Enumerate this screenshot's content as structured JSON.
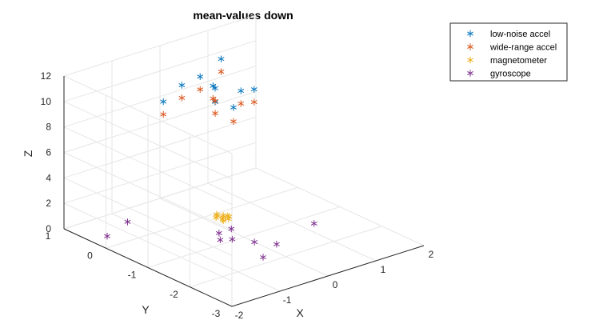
{
  "chart_data": {
    "type": "scatter",
    "title": "mean-values down",
    "xlabel": "X",
    "ylabel": "Y",
    "zlabel": "Z",
    "xlim": [
      -2,
      2
    ],
    "ylim": [
      -3,
      1
    ],
    "zlim": [
      0,
      12
    ],
    "xticks": [
      "-2",
      "-1",
      "0",
      "1",
      "2"
    ],
    "yticks": [
      "-3",
      "-2",
      "-1",
      "0",
      "1"
    ],
    "zticks": [
      "0",
      "2",
      "4",
      "6",
      "8",
      "10",
      "12"
    ],
    "grid": true,
    "legend_position": "top-right (outside)",
    "series": [
      {
        "name": "low-noise accel",
        "color": "#0072BD",
        "marker": "asterisk",
        "points": [
          [
            -1.05,
            -0.28,
            10.8
          ],
          [
            -0.55,
            -0.15,
            11.3
          ],
          [
            -0.38,
            -0.75,
            10.7
          ],
          [
            -0.32,
            -0.68,
            11.6
          ],
          [
            -0.3,
            -0.3,
            11.9
          ],
          [
            -0.25,
            -0.55,
            11.5
          ],
          [
            -0.2,
            -0.98,
            10.4
          ],
          [
            0.2,
            -0.7,
            10.8
          ],
          [
            0.4,
            0.0,
            12.0
          ],
          [
            0.3,
            -0.9,
            11.1
          ]
        ]
      },
      {
        "name": "wide-range accel",
        "color": "#D95319",
        "marker": "asterisk",
        "points": [
          [
            -1.05,
            -0.28,
            9.8
          ],
          [
            -0.55,
            -0.15,
            10.3
          ],
          [
            -0.38,
            -0.75,
            9.8
          ],
          [
            -0.32,
            -0.68,
            10.6
          ],
          [
            -0.3,
            -0.3,
            10.9
          ],
          [
            -0.25,
            -0.55,
            10.5
          ],
          [
            -0.2,
            -0.98,
            9.3
          ],
          [
            0.2,
            -0.7,
            9.8
          ],
          [
            0.4,
            0.0,
            11.0
          ],
          [
            0.3,
            -0.9,
            10.1
          ]
        ]
      },
      {
        "name": "magnetometer",
        "color": "#EDB120",
        "marker": "asterisk",
        "points": [
          [
            0.0,
            -0.5,
            0.8
          ],
          [
            0.05,
            -0.45,
            0.82
          ],
          [
            -0.05,
            -0.55,
            0.78
          ],
          [
            0.1,
            -0.5,
            0.8
          ],
          [
            -0.1,
            -0.45,
            0.81
          ],
          [
            0.03,
            -0.6,
            0.79
          ],
          [
            -0.03,
            -0.4,
            0.8
          ],
          [
            0.08,
            -0.55,
            0.82
          ],
          [
            -0.08,
            -0.6,
            0.78
          ],
          [
            0.0,
            -0.35,
            0.8
          ]
        ]
      },
      {
        "name": "gyroscope",
        "color": "#7E2F8E",
        "marker": "asterisk",
        "points": [
          [
            -1.8,
            0.2,
            0.4
          ],
          [
            -1.2,
            0.4,
            0.5
          ],
          [
            -0.3,
            -0.75,
            0.3
          ],
          [
            0.0,
            -0.7,
            0.2
          ],
          [
            -0.45,
            -0.95,
            0.25
          ],
          [
            -0.2,
            -0.95,
            0.0
          ],
          [
            0.0,
            -1.25,
            0.0
          ],
          [
            0.2,
            -1.55,
            0.05
          ],
          [
            -0.3,
            -1.8,
            0.0
          ],
          [
            1.2,
            -1.3,
            0.1
          ]
        ]
      }
    ]
  }
}
